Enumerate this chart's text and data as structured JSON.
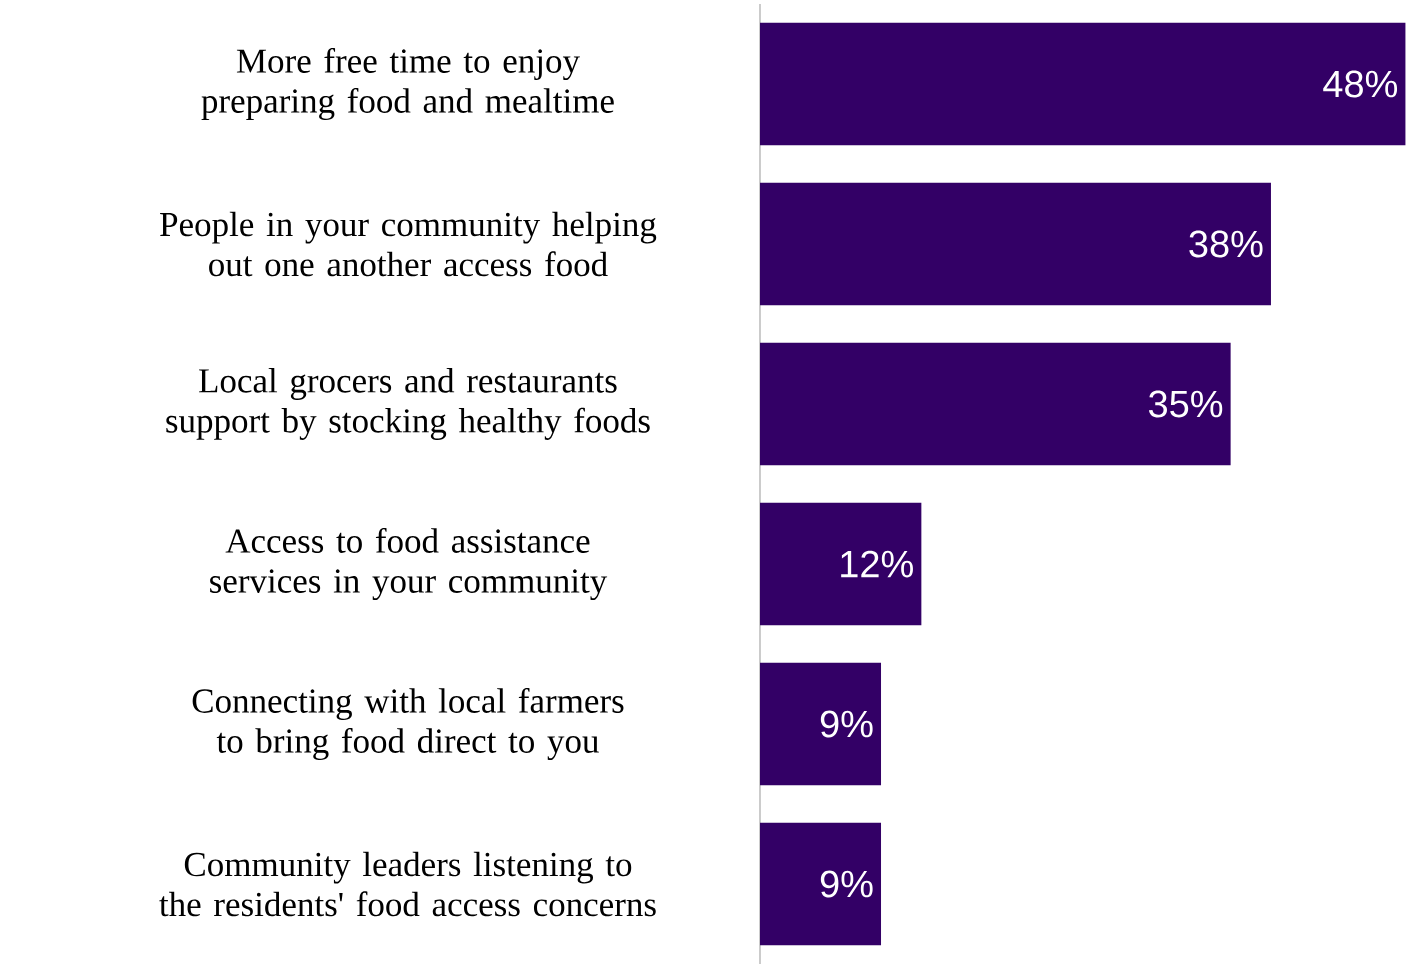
{
  "chart_data": {
    "type": "bar",
    "orientation": "horizontal",
    "categories": [
      "More free time to enjoy preparing food and mealtime",
      "People in your community helping out one another access food",
      "Local grocers and restaurants support by stocking healthy foods",
      "Access to food assistance services in your community",
      "Connecting with local farmers to bring food direct to you",
      "Community leaders listening to the residents' food access concerns"
    ],
    "values": [
      48,
      38,
      35,
      12,
      9,
      9
    ],
    "value_labels": [
      "48%",
      "38%",
      "35%",
      "12%",
      "9%",
      "9%"
    ],
    "color": "#330066"
  }
}
